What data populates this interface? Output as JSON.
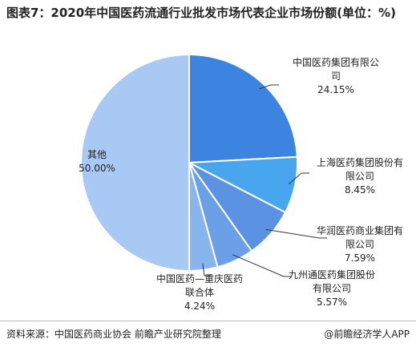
{
  "chart_data": {
    "type": "pie",
    "title": "图表7：2020年中国医药流通行业批发市场代表企业市场份额(单位：%)",
    "categories": [
      "中国医药集团有限公司",
      "上海医药集团股份有限公司",
      "华润医药商业集团有限公司",
      "九州通医药集团股份有限公司",
      "中国医药—重庆医药联合体",
      "其他"
    ],
    "values": [
      24.15,
      8.45,
      7.59,
      5.57,
      4.24,
      50.0
    ],
    "value_labels": [
      "24.15%",
      "8.45%",
      "7.59%",
      "5.57%",
      "4.24%",
      "50.00%"
    ],
    "colors": [
      "#3c84df",
      "#47a6ee",
      "#5b92e2",
      "#6ba0e8",
      "#88b5ee",
      "#a9c9f5"
    ],
    "source": "资料来源：中国医药商业协会 前瞻产业研究院整理",
    "brand": "@前瞻经济学人APP"
  }
}
